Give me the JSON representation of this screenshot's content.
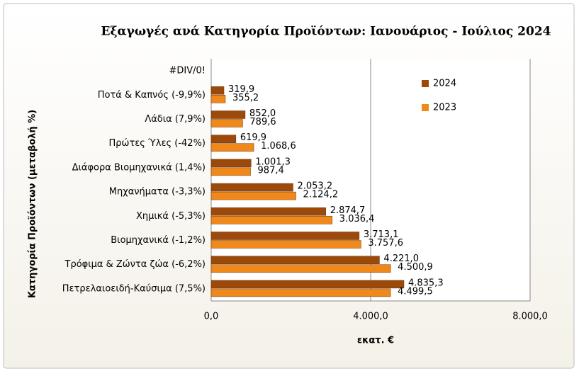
{
  "chart_data": {
    "type": "hbar",
    "title": "Εξαγωγές ανά Κατηγορία Προϊόντων:  Ιανουάριος - Ιούλιος 2024",
    "x_label": "εκατ. €",
    "y_label": "Κατηγορία Προϊόντων (μεταβολή %)",
    "categories": [
      "#DIV/0!",
      "Ποτά & Καπνός (-9,9%)",
      "Λάδια (7,9%)",
      "Πρώτες Ύλες (-42%)",
      "Διάφορα Βιομηχανικά (1,4%)",
      "Μηχανήματα (-3,3%)",
      "Χημικά (-5,3%)",
      "Βιομηχανικά (-1,2%)",
      "Τρόφιμα & Ζώντα ζώα (-6,2%)",
      "Πετρελαιοειδή-Καύσιμα (7,5%)"
    ],
    "series": [
      {
        "name": "2024",
        "color": "#9c4a0c",
        "values": [
          null,
          319.9,
          852.0,
          619.9,
          1001.3,
          2053.2,
          2874.7,
          3713.1,
          4221.0,
          4835.3
        ],
        "value_labels": [
          null,
          "319,9",
          "852,0",
          "619,9",
          "1.001,3",
          "2.053,2",
          "2.874,7",
          "3.713,1",
          "4.221,0",
          "4.835,3"
        ]
      },
      {
        "name": "2023",
        "color": "#f0891c",
        "values": [
          null,
          355.2,
          789.6,
          1068.6,
          987.4,
          2124.2,
          3036.4,
          3757.6,
          4500.9,
          4499.5
        ],
        "value_labels": [
          null,
          "355,2",
          "789,6",
          "1.068,6",
          "987,4",
          "2.124,2",
          "3.036,4",
          "3.757,6",
          "4.500,9",
          "4.499,5"
        ]
      }
    ],
    "xlim": [
      0,
      8000
    ],
    "xticks": [
      {
        "value": 0,
        "label": "0,0"
      },
      {
        "value": 4000,
        "label": "4.000,0"
      },
      {
        "value": 8000,
        "label": "8.000,0"
      }
    ],
    "grid": true,
    "legend": "right"
  }
}
